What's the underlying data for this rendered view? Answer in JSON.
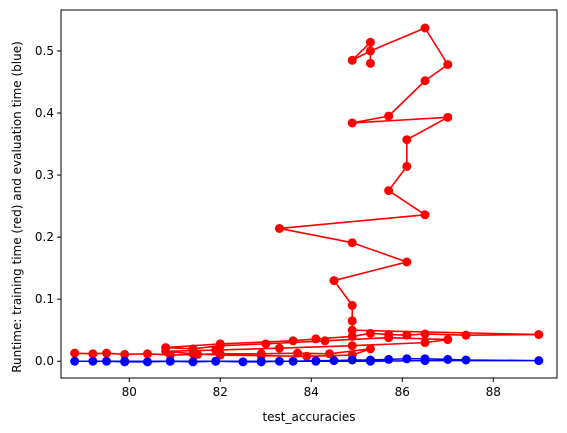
{
  "chart_data": {
    "type": "line",
    "xlabel": "test_accuracies",
    "ylabel": "Runtime: training time (red) and evaluation time (blue)",
    "xlim": [
      78.5,
      89.4
    ],
    "ylim": [
      -0.027,
      0.566
    ],
    "xticks": [
      80,
      82,
      84,
      86,
      88
    ],
    "yticks": [
      0.0,
      0.1,
      0.2,
      0.3,
      0.4,
      0.5
    ],
    "xtick_labels": [
      "80",
      "82",
      "84",
      "86",
      "88"
    ],
    "ytick_labels": [
      "0.0",
      "0.1",
      "0.2",
      "0.3",
      "0.4",
      "0.5"
    ],
    "grid": false,
    "series": [
      {
        "color": "#ff0000",
        "marker": "circle",
        "points": [
          [
            78.8,
            0.013
          ],
          [
            79.2,
            0.012
          ],
          [
            79.5,
            0.013
          ],
          [
            79.9,
            0.011
          ],
          [
            80.4,
            0.012
          ],
          [
            80.9,
            0.01
          ],
          [
            81.5,
            0.011
          ],
          [
            82.0,
            0.012
          ],
          [
            82.9,
            0.012
          ],
          [
            83.7,
            0.013
          ],
          [
            84.4,
            0.012
          ],
          [
            85.3,
            0.02
          ],
          [
            84.9,
            0.01
          ],
          [
            83.9,
            0.008
          ],
          [
            82.9,
            0.009
          ],
          [
            82.0,
            0.01
          ],
          [
            81.4,
            0.012
          ],
          [
            80.8,
            0.016
          ],
          [
            81.9,
            0.018
          ],
          [
            83.3,
            0.021
          ],
          [
            84.9,
            0.025
          ],
          [
            86.5,
            0.03
          ],
          [
            87.0,
            0.035
          ],
          [
            85.7,
            0.038
          ],
          [
            84.3,
            0.033
          ],
          [
            83.0,
            0.028
          ],
          [
            82.0,
            0.025
          ],
          [
            81.4,
            0.02
          ],
          [
            80.8,
            0.022
          ],
          [
            82.0,
            0.028
          ],
          [
            83.6,
            0.033
          ],
          [
            84.1,
            0.036
          ],
          [
            84.9,
            0.04
          ],
          [
            85.3,
            0.045
          ],
          [
            85.7,
            0.043
          ],
          [
            86.1,
            0.042
          ],
          [
            86.5,
            0.044
          ],
          [
            87.4,
            0.042
          ],
          [
            89.0,
            0.043
          ],
          [
            84.9,
            0.05
          ],
          [
            84.9,
            0.065
          ],
          [
            84.9,
            0.09
          ],
          [
            84.5,
            0.13
          ],
          [
            86.1,
            0.16
          ],
          [
            84.9,
            0.191
          ],
          [
            83.3,
            0.214
          ],
          [
            86.5,
            0.236
          ],
          [
            85.7,
            0.275
          ],
          [
            86.1,
            0.314
          ],
          [
            86.1,
            0.357
          ],
          [
            87.0,
            0.393
          ],
          [
            84.9,
            0.384
          ],
          [
            85.7,
            0.395
          ],
          [
            86.5,
            0.452
          ],
          [
            87.0,
            0.478
          ],
          [
            86.5,
            0.537
          ],
          [
            85.3,
            0.5
          ],
          [
            84.9,
            0.485
          ],
          [
            85.3,
            0.514
          ],
          [
            85.3,
            0.48
          ]
        ]
      },
      {
        "color": "#0000ff",
        "marker": "circle",
        "points": [
          [
            78.8,
            0.0
          ],
          [
            79.5,
            0.0
          ],
          [
            79.9,
            -0.001
          ],
          [
            80.4,
            -0.001
          ],
          [
            80.9,
            0.0
          ],
          [
            81.4,
            -0.001
          ],
          [
            81.9,
            0.0
          ],
          [
            82.5,
            -0.001
          ],
          [
            82.9,
            -0.001
          ],
          [
            83.3,
            0.0
          ],
          [
            83.6,
            0.0
          ],
          [
            84.1,
            0.001
          ],
          [
            84.5,
            0.001
          ],
          [
            84.9,
            0.002
          ],
          [
            85.3,
            0.002
          ],
          [
            85.7,
            0.003
          ],
          [
            86.1,
            0.004
          ],
          [
            86.5,
            0.004
          ],
          [
            87.0,
            0.003
          ],
          [
            87.4,
            0.002
          ],
          [
            89.0,
            0.001
          ],
          [
            86.5,
            0.001
          ],
          [
            85.3,
            0.0
          ],
          [
            84.1,
            0.0
          ],
          [
            82.9,
            0.0
          ],
          [
            81.9,
            0.0
          ],
          [
            80.9,
            0.0
          ],
          [
            79.9,
            0.0
          ],
          [
            79.2,
            0.0
          ]
        ]
      }
    ]
  }
}
